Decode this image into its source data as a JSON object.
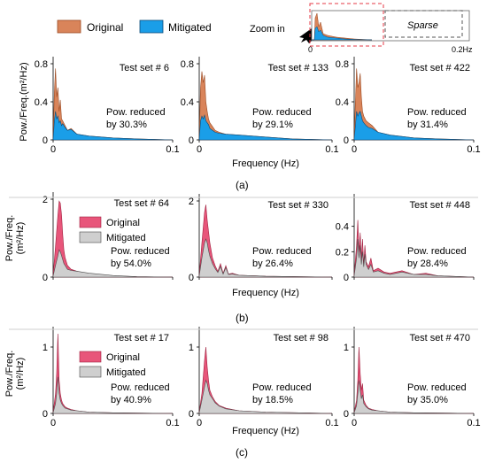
{
  "legend_top": {
    "original": "Original",
    "mitigated": "Mitigated"
  },
  "inset": {
    "label": "Zoom in",
    "sparse": "Sparse",
    "tick0": "0",
    "tick1": "0.2Hz"
  },
  "colors": {
    "orange": "#d9845a",
    "orange_stroke": "#9b4a22",
    "blue": "#1a9ee8",
    "blue_stroke": "#0b4a78",
    "pink": "#e8557a",
    "pink_stroke": "#a0203f",
    "gray": "#cfcfcf",
    "gray_stroke": "#4a4a4a"
  },
  "chart_data": [
    {
      "group": "a",
      "type": "area",
      "title": "Test set # 6",
      "annotation": [
        "Pow. reduced",
        "by 30.3%"
      ],
      "ylabel": [
        "Pow./Freq.(m²/Hz)"
      ],
      "xlabel": "Frequency (Hz)",
      "ylim": [
        0,
        0.8
      ],
      "yticks": [
        "0",
        "0.4",
        "0.8"
      ],
      "xticks": [
        "0",
        "0.1"
      ],
      "xlim": [
        0,
        0.1
      ],
      "series": [
        {
          "name": "Original",
          "x": [
            0,
            0.001,
            0.002,
            0.003,
            0.004,
            0.005,
            0.006,
            0.007,
            0.008,
            0.01,
            0.012,
            0.015,
            0.02,
            0.03,
            0.05,
            0.07,
            0.1
          ],
          "values": [
            0.02,
            0.5,
            0.75,
            0.45,
            0.55,
            0.3,
            0.42,
            0.22,
            0.2,
            0.15,
            0.1,
            0.12,
            0.06,
            0.04,
            0.02,
            0.01,
            0.0
          ]
        },
        {
          "name": "Mitigated",
          "x": [
            0,
            0.001,
            0.002,
            0.003,
            0.004,
            0.005,
            0.006,
            0.007,
            0.008,
            0.01,
            0.012,
            0.015,
            0.02,
            0.03,
            0.05,
            0.07,
            0.1
          ],
          "values": [
            0.01,
            0.2,
            0.3,
            0.22,
            0.25,
            0.18,
            0.2,
            0.15,
            0.17,
            0.13,
            0.1,
            0.11,
            0.06,
            0.04,
            0.02,
            0.01,
            0.0
          ]
        }
      ]
    },
    {
      "group": "a",
      "type": "area",
      "title": "Test set # 133",
      "annotation": [
        "Pow. reduced",
        "by 29.1%"
      ],
      "ylim": [
        0,
        0.8
      ],
      "yticks": [
        "0",
        "0.4",
        "0.8"
      ],
      "xticks": [
        "0",
        "0.1"
      ],
      "xlim": [
        0,
        0.1
      ],
      "series": [
        {
          "name": "Original",
          "x": [
            0,
            0.001,
            0.002,
            0.003,
            0.004,
            0.005,
            0.006,
            0.007,
            0.008,
            0.01,
            0.012,
            0.015,
            0.02,
            0.03,
            0.05,
            0.07,
            0.1
          ],
          "values": [
            0.02,
            0.55,
            0.72,
            0.6,
            0.68,
            0.4,
            0.3,
            0.22,
            0.18,
            0.14,
            0.1,
            0.08,
            0.06,
            0.05,
            0.03,
            0.01,
            0.0
          ]
        },
        {
          "name": "Mitigated",
          "x": [
            0,
            0.001,
            0.002,
            0.003,
            0.004,
            0.005,
            0.006,
            0.007,
            0.008,
            0.01,
            0.012,
            0.015,
            0.02,
            0.03,
            0.05,
            0.07,
            0.1
          ],
          "values": [
            0.01,
            0.2,
            0.25,
            0.22,
            0.26,
            0.2,
            0.18,
            0.16,
            0.12,
            0.1,
            0.08,
            0.07,
            0.06,
            0.05,
            0.03,
            0.01,
            0.0
          ]
        }
      ]
    },
    {
      "group": "a",
      "type": "area",
      "title": "Test set # 422",
      "annotation": [
        "Pow. reduced",
        "by 31.4%"
      ],
      "ylim": [
        0,
        0.8
      ],
      "yticks": [
        "0",
        "0.4",
        "0.8"
      ],
      "xticks": [
        "0",
        "0.1"
      ],
      "xlim": [
        0,
        0.1
      ],
      "series": [
        {
          "name": "Original",
          "x": [
            0,
            0.001,
            0.002,
            0.003,
            0.004,
            0.005,
            0.006,
            0.007,
            0.008,
            0.01,
            0.012,
            0.015,
            0.02,
            0.03,
            0.05,
            0.07,
            0.1
          ],
          "values": [
            0.02,
            0.4,
            0.75,
            0.55,
            0.6,
            0.7,
            0.45,
            0.3,
            0.25,
            0.2,
            0.18,
            0.15,
            0.08,
            0.05,
            0.02,
            0.01,
            0.0
          ]
        },
        {
          "name": "Mitigated",
          "x": [
            0,
            0.001,
            0.002,
            0.003,
            0.004,
            0.005,
            0.006,
            0.007,
            0.008,
            0.01,
            0.012,
            0.015,
            0.02,
            0.03,
            0.05,
            0.07,
            0.1
          ],
          "values": [
            0.01,
            0.15,
            0.3,
            0.25,
            0.28,
            0.3,
            0.25,
            0.2,
            0.18,
            0.15,
            0.13,
            0.12,
            0.08,
            0.05,
            0.02,
            0.01,
            0.0
          ]
        }
      ]
    },
    {
      "group": "b",
      "type": "area",
      "title": "Test set # 64",
      "annotation": [
        "Pow. reduced",
        "by 54.0%"
      ],
      "ylabel": [
        "Pow./Freq.",
        "(m²/Hz)"
      ],
      "xlabel": "Frequency (Hz)",
      "ylim": [
        0,
        2
      ],
      "yticks": [
        "0",
        "1",
        "2"
      ],
      "yticklabels": [
        0,
        2
      ],
      "xlim": [
        0,
        0.1
      ],
      "legend": [
        "Original",
        "Mitigated"
      ],
      "series": [
        {
          "name": "Original",
          "x": [
            0,
            0.002,
            0.004,
            0.005,
            0.006,
            0.007,
            0.008,
            0.009,
            0.01,
            0.012,
            0.015,
            0.02,
            0.03,
            0.05,
            0.07,
            0.1
          ],
          "values": [
            0.05,
            0.8,
            1.6,
            1.95,
            1.9,
            1.6,
            1.1,
            0.7,
            0.5,
            0.3,
            0.2,
            0.15,
            0.08,
            0.03,
            0.01,
            0.0
          ]
        },
        {
          "name": "Mitigated",
          "x": [
            0,
            0.002,
            0.004,
            0.005,
            0.006,
            0.007,
            0.008,
            0.009,
            0.01,
            0.012,
            0.015,
            0.02,
            0.03,
            0.05,
            0.07,
            0.1
          ],
          "values": [
            0.03,
            0.3,
            0.55,
            0.7,
            0.65,
            0.55,
            0.45,
            0.35,
            0.3,
            0.2,
            0.17,
            0.15,
            0.1,
            0.04,
            0.01,
            0.0
          ]
        }
      ]
    },
    {
      "group": "b",
      "type": "area",
      "title": "Test set # 330",
      "annotation": [
        "Pow. reduced",
        "by 26.4%"
      ],
      "ylim": [
        0,
        2
      ],
      "xlim": [
        0,
        0.1
      ],
      "series": [
        {
          "name": "Original",
          "x": [
            0,
            0.002,
            0.004,
            0.005,
            0.006,
            0.007,
            0.008,
            0.01,
            0.012,
            0.014,
            0.016,
            0.018,
            0.02,
            0.022,
            0.025,
            0.03,
            0.05,
            0.1
          ],
          "values": [
            0.05,
            0.9,
            1.7,
            1.9,
            1.5,
            1.2,
            0.9,
            0.5,
            0.3,
            0.15,
            0.35,
            0.1,
            0.3,
            0.08,
            0.1,
            0.05,
            0.02,
            0.0
          ]
        },
        {
          "name": "Mitigated",
          "x": [
            0,
            0.002,
            0.004,
            0.005,
            0.006,
            0.007,
            0.008,
            0.01,
            0.012,
            0.014,
            0.016,
            0.018,
            0.02,
            0.022,
            0.025,
            0.03,
            0.05,
            0.1
          ],
          "values": [
            0.03,
            0.5,
            0.9,
            1.0,
            0.9,
            0.7,
            0.55,
            0.35,
            0.22,
            0.12,
            0.28,
            0.08,
            0.25,
            0.07,
            0.08,
            0.05,
            0.02,
            0.0
          ]
        }
      ]
    },
    {
      "group": "b",
      "type": "area",
      "title": "Test set # 448",
      "annotation": [
        "Pow. reduced",
        "by 28.4%"
      ],
      "ylim": [
        0,
        0.6
      ],
      "yticks": [
        "0",
        "0.2",
        "0.4"
      ],
      "xlim": [
        0,
        0.1
      ],
      "series": [
        {
          "name": "Original",
          "x": [
            0,
            0.002,
            0.003,
            0.004,
            0.005,
            0.006,
            0.007,
            0.008,
            0.009,
            0.01,
            0.012,
            0.014,
            0.016,
            0.02,
            0.025,
            0.03,
            0.04,
            0.05,
            0.06,
            0.07,
            0.1
          ],
          "values": [
            0.02,
            0.25,
            0.45,
            0.2,
            0.35,
            0.15,
            0.3,
            0.1,
            0.25,
            0.12,
            0.08,
            0.15,
            0.05,
            0.07,
            0.04,
            0.03,
            0.05,
            0.02,
            0.03,
            0.01,
            0.0
          ]
        },
        {
          "name": "Mitigated",
          "x": [
            0,
            0.002,
            0.003,
            0.004,
            0.005,
            0.006,
            0.007,
            0.008,
            0.009,
            0.01,
            0.012,
            0.014,
            0.016,
            0.02,
            0.025,
            0.03,
            0.04,
            0.05,
            0.06,
            0.07,
            0.1
          ],
          "values": [
            0.01,
            0.15,
            0.3,
            0.15,
            0.25,
            0.1,
            0.2,
            0.08,
            0.18,
            0.1,
            0.06,
            0.1,
            0.04,
            0.05,
            0.03,
            0.02,
            0.04,
            0.02,
            0.02,
            0.01,
            0.0
          ]
        }
      ]
    },
    {
      "group": "c",
      "type": "area",
      "title": "Test set # 17",
      "annotation": [
        "Pow. reduced",
        "by 40.9%"
      ],
      "ylabel": [
        "Pow./Freq.",
        "(m²/Hz)"
      ],
      "xlabel": "Frequency (Hz)",
      "ylim": [
        0,
        1.2
      ],
      "yticks": [
        "0",
        "1"
      ],
      "xticks": [
        "0",
        "0.1"
      ],
      "xlim": [
        0,
        0.1
      ],
      "legend": [
        "Original",
        "Mitigated"
      ],
      "series": [
        {
          "name": "Original",
          "x": [
            0,
            0.002,
            0.003,
            0.004,
            0.005,
            0.006,
            0.007,
            0.008,
            0.01,
            0.012,
            0.015,
            0.02,
            0.03,
            0.05,
            0.1
          ],
          "values": [
            0.02,
            0.3,
            0.6,
            1.2,
            0.5,
            0.3,
            0.2,
            0.15,
            0.1,
            0.08,
            0.06,
            0.04,
            0.02,
            0.01,
            0.0
          ]
        },
        {
          "name": "Mitigated",
          "x": [
            0,
            0.002,
            0.003,
            0.004,
            0.005,
            0.006,
            0.007,
            0.008,
            0.01,
            0.012,
            0.015,
            0.02,
            0.03,
            0.05,
            0.1
          ],
          "values": [
            0.01,
            0.15,
            0.3,
            0.55,
            0.3,
            0.2,
            0.15,
            0.12,
            0.08,
            0.07,
            0.05,
            0.04,
            0.02,
            0.01,
            0.0
          ]
        }
      ]
    },
    {
      "group": "c",
      "type": "area",
      "title": "Test set # 98",
      "annotation": [
        "Pow. reduced",
        "by 18.5%"
      ],
      "ylim": [
        0,
        1.2
      ],
      "yticks": [
        "0",
        "1"
      ],
      "xticks": [
        "0",
        "0.1"
      ],
      "xlim": [
        0,
        0.1
      ],
      "series": [
        {
          "name": "Original",
          "x": [
            0,
            0.002,
            0.004,
            0.005,
            0.006,
            0.007,
            0.008,
            0.01,
            0.012,
            0.015,
            0.02,
            0.03,
            0.05,
            0.1
          ],
          "values": [
            0.02,
            0.3,
            0.8,
            1.0,
            0.7,
            0.5,
            0.35,
            0.25,
            0.18,
            0.12,
            0.08,
            0.04,
            0.02,
            0.0
          ]
        },
        {
          "name": "Mitigated",
          "x": [
            0,
            0.002,
            0.004,
            0.005,
            0.006,
            0.007,
            0.008,
            0.01,
            0.012,
            0.015,
            0.02,
            0.03,
            0.05,
            0.1
          ],
          "values": [
            0.01,
            0.2,
            0.4,
            0.5,
            0.45,
            0.35,
            0.28,
            0.22,
            0.16,
            0.11,
            0.07,
            0.04,
            0.02,
            0.0
          ]
        }
      ]
    },
    {
      "group": "c",
      "type": "area",
      "title": "Test set # 470",
      "annotation": [
        "Pow. reduced",
        "by 35.0%"
      ],
      "ylim": [
        0,
        1.2
      ],
      "yticks": [
        "0",
        "1"
      ],
      "xticks": [
        "0",
        "0.1"
      ],
      "xlim": [
        0,
        0.1
      ],
      "series": [
        {
          "name": "Original",
          "x": [
            0,
            0.002,
            0.003,
            0.004,
            0.005,
            0.006,
            0.007,
            0.008,
            0.01,
            0.012,
            0.015,
            0.02,
            0.03,
            0.05,
            0.1
          ],
          "values": [
            0.02,
            0.2,
            0.5,
            1.0,
            0.6,
            0.35,
            0.45,
            0.2,
            0.12,
            0.08,
            0.06,
            0.04,
            0.02,
            0.01,
            0.0
          ]
        },
        {
          "name": "Mitigated",
          "x": [
            0,
            0.002,
            0.003,
            0.004,
            0.005,
            0.006,
            0.007,
            0.008,
            0.01,
            0.012,
            0.015,
            0.02,
            0.03,
            0.05,
            0.1
          ],
          "values": [
            0.01,
            0.12,
            0.3,
            0.5,
            0.35,
            0.22,
            0.28,
            0.15,
            0.1,
            0.07,
            0.05,
            0.04,
            0.02,
            0.01,
            0.0
          ]
        }
      ]
    }
  ],
  "panel_labels": [
    "(a)",
    "(b)",
    "(c)"
  ]
}
